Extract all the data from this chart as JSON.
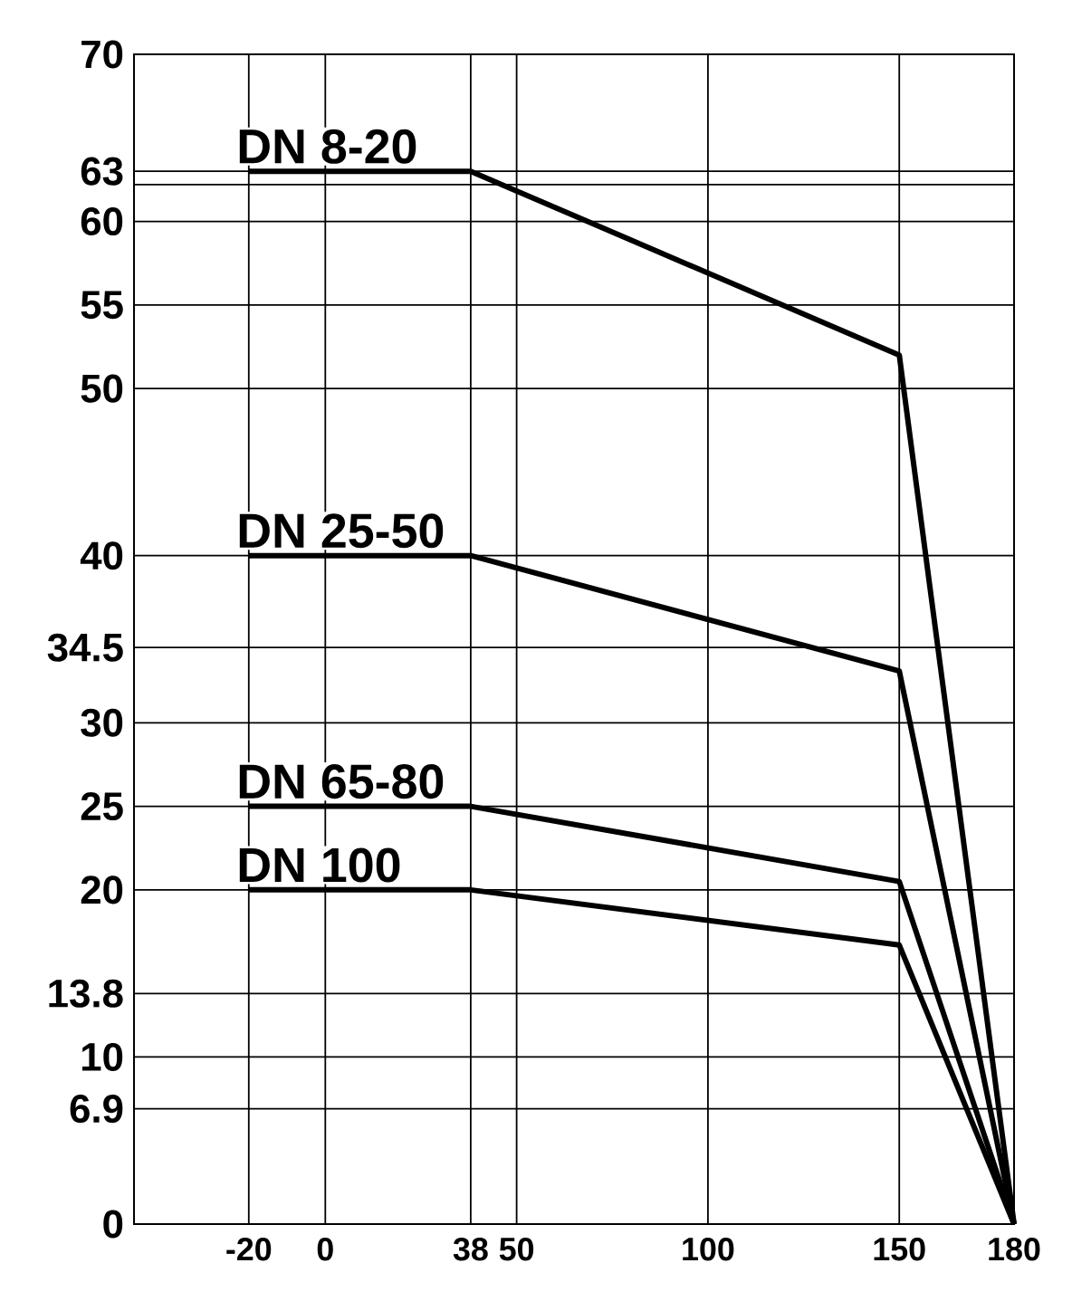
{
  "chart_data": {
    "type": "line",
    "xlim": [
      -50,
      180
    ],
    "ylim": [
      0,
      70
    ],
    "xticks": [
      -20,
      0,
      38,
      50,
      100,
      150,
      180
    ],
    "yticks": [
      0,
      6.9,
      10,
      13.8,
      20,
      25,
      30,
      34.5,
      40,
      50,
      55,
      60,
      {
        "value": 62.2,
        "label": null
      },
      63,
      70
    ],
    "grid": true,
    "legend": false,
    "marker": "none",
    "line_style": "solid",
    "series": [
      {
        "name": "DN 8-20",
        "color": "#000000",
        "x": [
          -20,
          38,
          150,
          180
        ],
        "values": [
          63,
          63,
          52,
          0
        ]
      },
      {
        "name": "DN 25-50",
        "color": "#000000",
        "x": [
          -20,
          38,
          150,
          180
        ],
        "values": [
          40,
          40,
          33.1,
          0
        ]
      },
      {
        "name": "DN 65-80",
        "color": "#000000",
        "x": [
          -20,
          38,
          150,
          180
        ],
        "values": [
          25,
          25,
          20.5,
          0
        ]
      },
      {
        "name": "DN 100",
        "color": "#000000",
        "x": [
          -20,
          38,
          150,
          180
        ],
        "values": [
          20,
          20,
          16.7,
          0
        ]
      }
    ]
  }
}
